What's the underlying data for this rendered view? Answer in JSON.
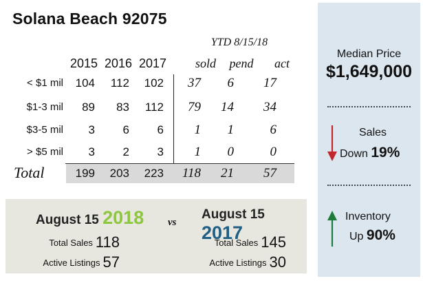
{
  "title": "Solana Beach 92075",
  "table": {
    "ytd_label": "YTD 8/15/18",
    "year_headers": [
      "2015",
      "2016",
      "2017"
    ],
    "ytd_headers": [
      "sold",
      "pend",
      "act"
    ],
    "rows": [
      {
        "label": "< $1 mil",
        "values": [
          "104",
          "112",
          "102",
          "37",
          "6",
          "17"
        ]
      },
      {
        "label": "$1-3 mil",
        "values": [
          "89",
          "83",
          "112",
          "79",
          "14",
          "34"
        ]
      },
      {
        "label": "$3-5 mil",
        "values": [
          "3",
          "6",
          "6",
          "1",
          "1",
          "6"
        ]
      },
      {
        "label": "> $5 mil",
        "values": [
          "3",
          "2",
          "3",
          "1",
          "0",
          "0"
        ]
      }
    ],
    "total": {
      "label": "Total",
      "values": [
        "199",
        "203",
        "223",
        "118",
        "21",
        "57"
      ]
    }
  },
  "comparison": {
    "vs": "vs",
    "left": {
      "prefix": "August 15",
      "year": "2018",
      "year_color": "#8dc63f",
      "sales_label": "Total Sales",
      "sales": "118",
      "listings_label": "Active Listings",
      "listings": "57"
    },
    "right": {
      "prefix": "August 15",
      "year": "2017",
      "year_color": "#1f5f86",
      "sales_label": "Total Sales",
      "sales": "145",
      "listings_label": "Active Listings",
      "listings": "30"
    }
  },
  "panel": {
    "median_label": "Median Price",
    "median_value": "$1,649,000",
    "sales_label": "Sales",
    "sales_direction": "Down",
    "sales_pct": "19%",
    "sales_arrow_color": "#c1272d",
    "inventory_label": "Inventory",
    "inventory_direction": "Up",
    "inventory_pct": "90%",
    "inventory_arrow_color": "#1e7b3c"
  }
}
